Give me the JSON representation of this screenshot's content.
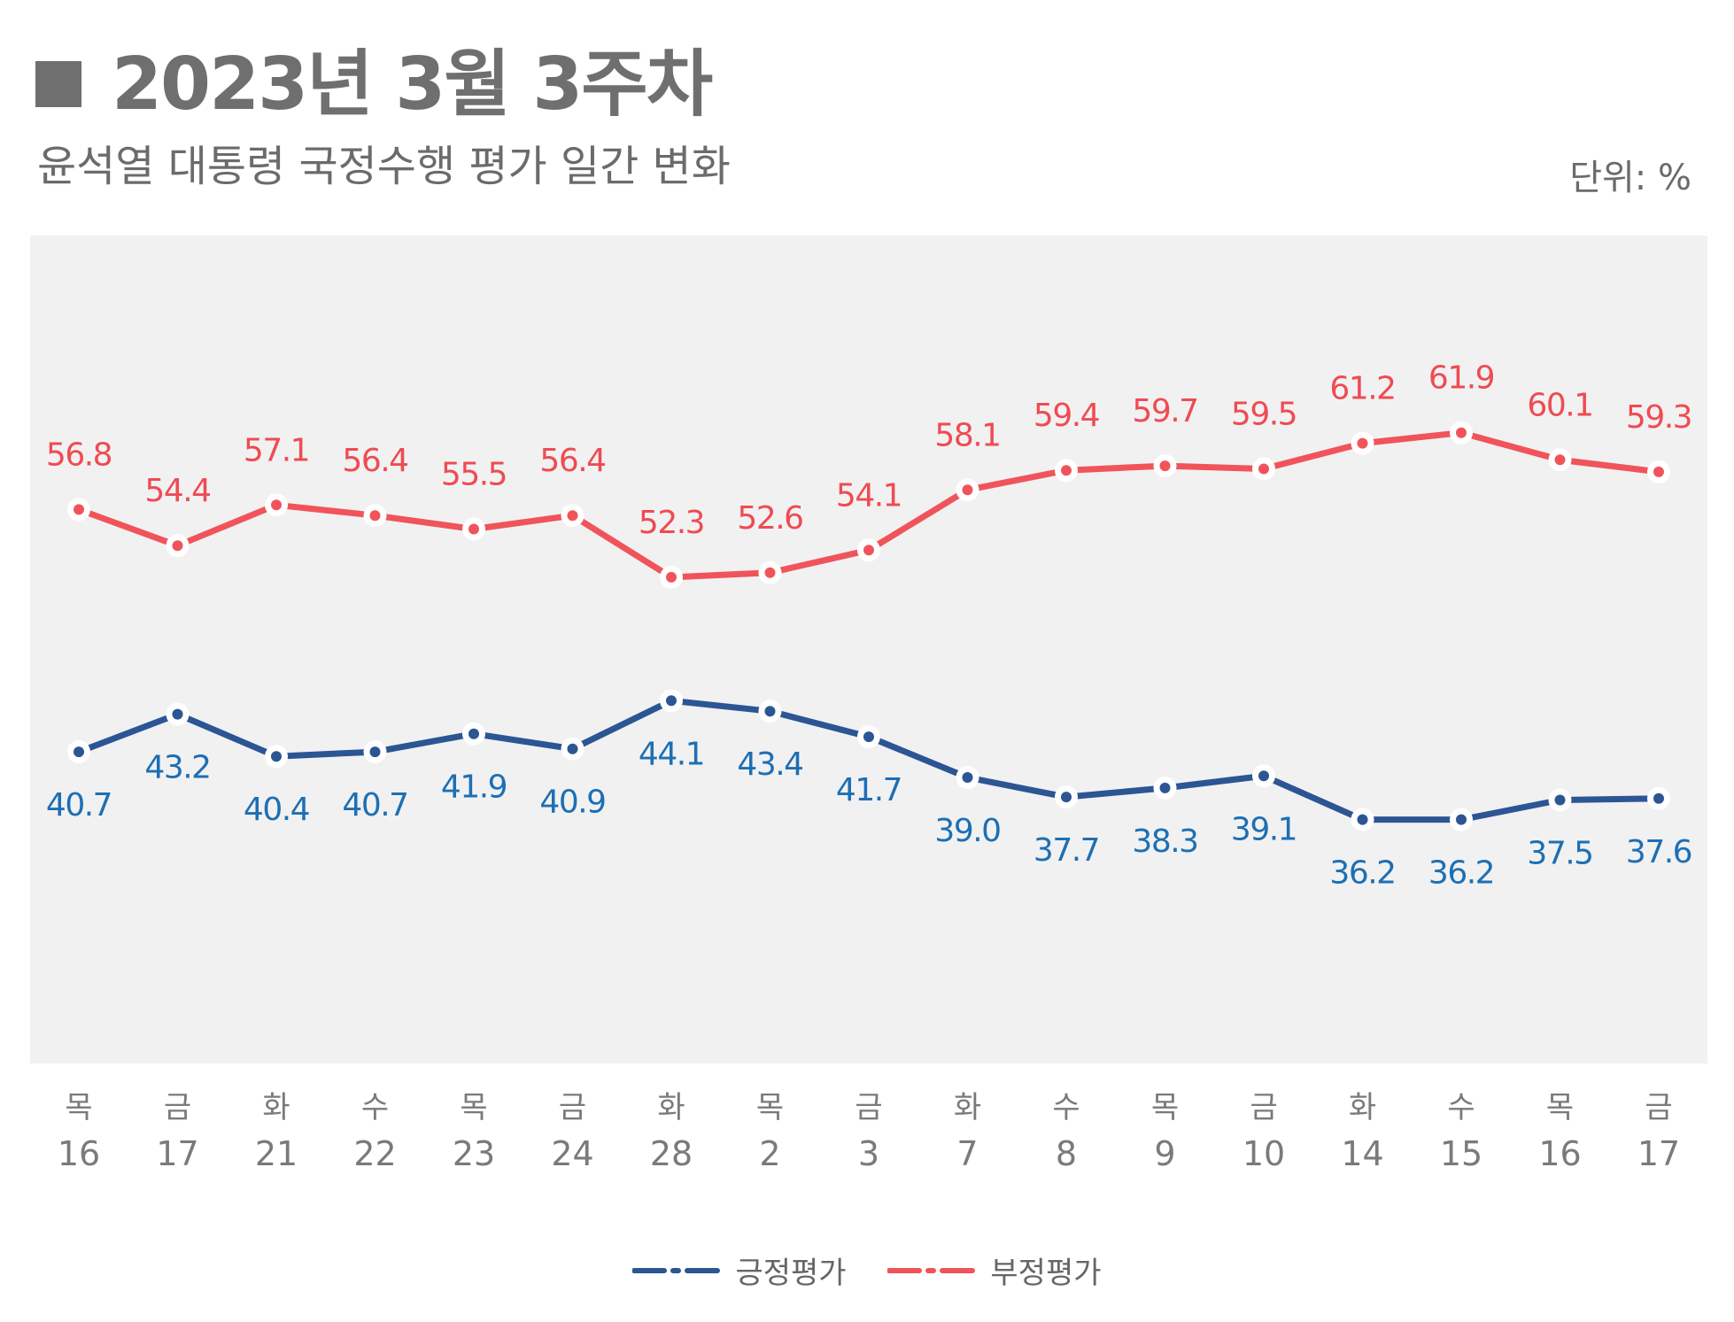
{
  "header": {
    "title": "2023년 3월 3주차",
    "subtitle": "윤석열 대통령 국정수행 평가 일간 변화",
    "unit": "단위: %"
  },
  "colors": {
    "positive": "#2c5593",
    "positive_label": "#1d6fb3",
    "negative": "#f0545a",
    "negative_label": "#ef4b52",
    "plot_bg": "#f1f1f2",
    "axis_text": "#7a7a7a"
  },
  "legend": [
    {
      "name": "긍정평가",
      "color": "#2c5593"
    },
    {
      "name": "부정평가",
      "color": "#f0545a"
    }
  ],
  "chart_data": {
    "type": "line",
    "title": "윤석열 대통령 국정수행 평가 일간 변화",
    "xlabel": "",
    "ylabel": "%",
    "ylim": [
      20,
      75
    ],
    "grid": false,
    "legend_position": "bottom",
    "weekdays": [
      "목",
      "금",
      "화",
      "수",
      "목",
      "금",
      "화",
      "목",
      "금",
      "화",
      "수",
      "목",
      "금",
      "화",
      "수",
      "목",
      "금"
    ],
    "dates": [
      "16",
      "17",
      "21",
      "22",
      "23",
      "24",
      "28",
      "2",
      "3",
      "7",
      "8",
      "9",
      "10",
      "14",
      "15",
      "16",
      "17"
    ],
    "series": [
      {
        "name": "긍정평가",
        "values": [
          40.7,
          43.2,
          40.4,
          40.7,
          41.9,
          40.9,
          44.1,
          43.4,
          41.7,
          39.0,
          37.7,
          38.3,
          39.1,
          36.2,
          36.2,
          37.5,
          37.6
        ],
        "labels": [
          "40.7",
          "43.2",
          "40.4",
          "40.7",
          "41.9",
          "40.9",
          "44.1",
          "43.4",
          "41.7",
          "39.0",
          "37.7",
          "38.3",
          "39.1",
          "36.2",
          "36.2",
          "37.5",
          "37.6"
        ]
      },
      {
        "name": "부정평가",
        "values": [
          56.8,
          54.4,
          57.1,
          56.4,
          55.5,
          56.4,
          52.3,
          52.6,
          54.1,
          58.1,
          59.4,
          59.7,
          59.5,
          61.2,
          61.9,
          60.1,
          59.3
        ],
        "labels": [
          "56.8",
          "54.4",
          "57.1",
          "56.4",
          "55.5",
          "56.4",
          "52.3",
          "52.6",
          "54.1",
          "58.1",
          "59.4",
          "59.7",
          "59.5",
          "61.2",
          "61.9",
          "60.1",
          "59.3"
        ]
      }
    ]
  }
}
